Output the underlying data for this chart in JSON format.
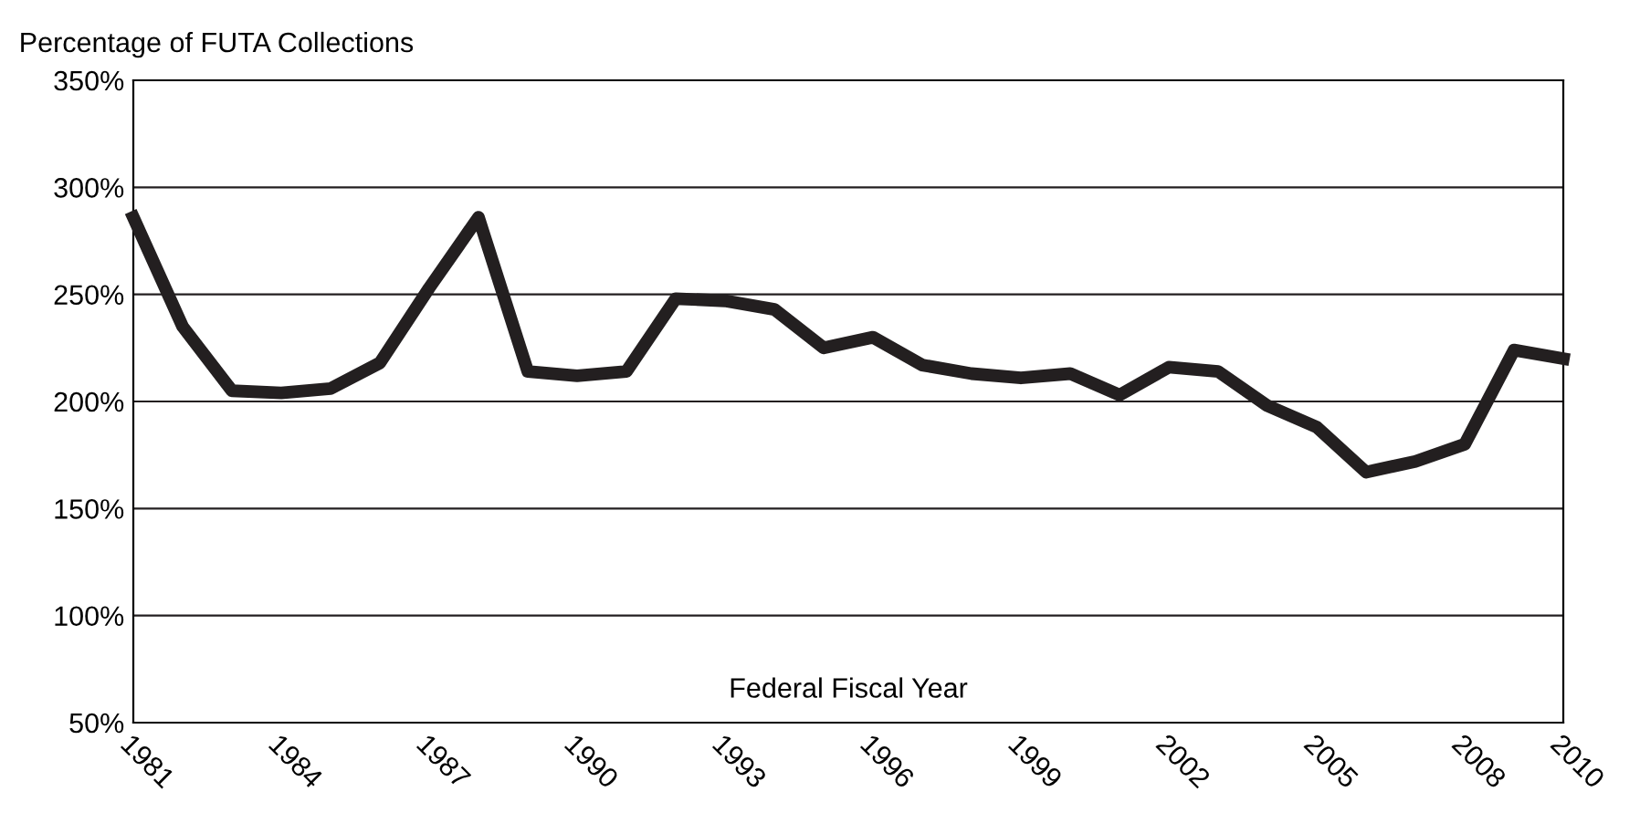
{
  "chart_data": {
    "type": "line",
    "ylabel": "Percentage of FUTA Collections",
    "xlabel": "Federal Fiscal Year",
    "x": [
      1981,
      1982,
      1983,
      1984,
      1985,
      1986,
      1987,
      1988,
      1989,
      1990,
      1991,
      1992,
      1993,
      1994,
      1995,
      1996,
      1997,
      1998,
      1999,
      2000,
      2001,
      2002,
      2003,
      2004,
      2005,
      2006,
      2007,
      2008,
      2009,
      2010
    ],
    "series": [
      {
        "color": "#231f20",
        "values": [
          286,
          235,
          205,
          204,
          206,
          218,
          253,
          286,
          214,
          212,
          214,
          248,
          247,
          243,
          225,
          230,
          217,
          213,
          211,
          213,
          203,
          216,
          214,
          198,
          188,
          167,
          172,
          180,
          224,
          220
        ]
      }
    ],
    "xlim": [
      1981,
      2010
    ],
    "xticks": [
      1981,
      1984,
      1987,
      1990,
      1993,
      1996,
      1999,
      2002,
      2005,
      2008,
      2010
    ],
    "ylim": [
      50,
      350
    ],
    "yticks": [
      {
        "value": 50,
        "label": "50%"
      },
      {
        "value": 100,
        "label": "100%"
      },
      {
        "value": 150,
        "label": "150%"
      },
      {
        "value": 200,
        "label": "200%"
      },
      {
        "value": 250,
        "label": "250%"
      },
      {
        "value": 300,
        "label": "300%"
      },
      {
        "value": 350,
        "label": "350%"
      }
    ],
    "grid": "y",
    "marker": "none",
    "line_style": "solid"
  }
}
